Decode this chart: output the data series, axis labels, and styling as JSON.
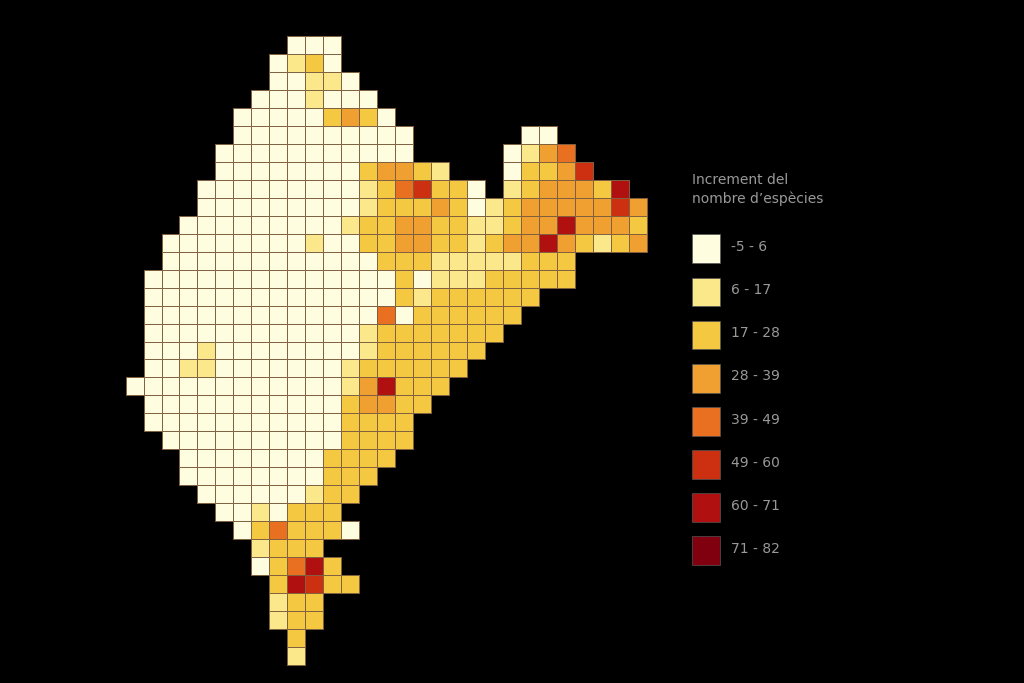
{
  "background_color": "#000000",
  "legend_title": "Increment del\nnombre d’espècies",
  "legend_labels": [
    "-5 - 6",
    "6 - 17",
    "17 - 28",
    "28 - 39",
    "39 - 49",
    "49 - 60",
    "60 - 71",
    "71 - 82"
  ],
  "legend_colors": [
    "#FEFDE0",
    "#FAE88A",
    "#F5C842",
    "#F0A030",
    "#E87020",
    "#CC3010",
    "#B01010",
    "#800010"
  ],
  "border_color": "#806040",
  "border_lw": 0.7,
  "color_map": {
    "1": "#FEFDE0",
    "2": "#FAE88A",
    "3": "#F5C842",
    "4": "#F0A030",
    "5": "#E87020",
    "6": "#CC3010",
    "7": "#B01010",
    "8": "#800010"
  },
  "grid": [
    [
      0,
      0,
      0,
      0,
      0,
      0,
      0,
      0,
      0,
      0,
      0,
      0,
      0,
      0,
      0,
      0,
      0,
      0,
      0,
      0,
      0,
      0,
      0,
      0,
      0,
      0,
      0,
      0,
      0,
      0
    ],
    [
      0,
      0,
      0,
      0,
      0,
      0,
      0,
      0,
      0,
      1,
      1,
      1,
      0,
      0,
      0,
      0,
      0,
      0,
      0,
      0,
      0,
      0,
      0,
      0,
      0,
      0,
      0,
      0,
      0,
      0
    ],
    [
      0,
      0,
      0,
      0,
      0,
      0,
      0,
      0,
      1,
      2,
      3,
      1,
      0,
      0,
      0,
      0,
      0,
      0,
      0,
      0,
      0,
      0,
      0,
      0,
      0,
      0,
      0,
      0,
      0,
      0
    ],
    [
      0,
      0,
      0,
      0,
      0,
      0,
      0,
      0,
      1,
      1,
      2,
      2,
      1,
      0,
      0,
      0,
      0,
      0,
      0,
      0,
      0,
      0,
      0,
      0,
      0,
      0,
      0,
      0,
      0,
      0
    ],
    [
      0,
      0,
      0,
      0,
      0,
      0,
      0,
      1,
      1,
      1,
      2,
      1,
      1,
      1,
      0,
      0,
      0,
      0,
      0,
      0,
      0,
      0,
      0,
      0,
      0,
      0,
      0,
      0,
      0,
      0
    ],
    [
      0,
      0,
      0,
      0,
      0,
      0,
      1,
      1,
      1,
      1,
      1,
      3,
      4,
      3,
      1,
      0,
      0,
      0,
      0,
      0,
      0,
      0,
      0,
      0,
      0,
      0,
      0,
      0,
      0,
      0
    ],
    [
      0,
      0,
      0,
      0,
      0,
      0,
      1,
      1,
      1,
      1,
      1,
      1,
      1,
      1,
      1,
      1,
      0,
      0,
      0,
      0,
      0,
      0,
      1,
      1,
      0,
      0,
      0,
      0,
      0,
      0
    ],
    [
      0,
      0,
      0,
      0,
      0,
      1,
      1,
      1,
      1,
      1,
      1,
      1,
      1,
      1,
      1,
      1,
      0,
      0,
      0,
      0,
      0,
      1,
      2,
      4,
      5,
      0,
      0,
      0,
      0,
      0
    ],
    [
      0,
      0,
      0,
      0,
      0,
      1,
      1,
      1,
      1,
      1,
      1,
      1,
      1,
      3,
      4,
      4,
      3,
      2,
      0,
      0,
      0,
      1,
      3,
      3,
      4,
      6,
      0,
      0,
      0,
      0
    ],
    [
      0,
      0,
      0,
      0,
      1,
      1,
      1,
      1,
      1,
      1,
      1,
      1,
      1,
      2,
      3,
      5,
      6,
      3,
      3,
      1,
      0,
      2,
      3,
      4,
      4,
      4,
      3,
      7,
      0,
      0
    ],
    [
      0,
      0,
      0,
      0,
      1,
      1,
      1,
      1,
      1,
      1,
      1,
      1,
      1,
      2,
      3,
      3,
      3,
      4,
      3,
      1,
      2,
      3,
      4,
      4,
      4,
      4,
      4,
      6,
      4,
      0
    ],
    [
      0,
      0,
      0,
      1,
      1,
      1,
      1,
      1,
      1,
      1,
      1,
      1,
      2,
      3,
      3,
      4,
      4,
      3,
      3,
      2,
      2,
      3,
      4,
      4,
      7,
      4,
      4,
      4,
      3,
      0
    ],
    [
      0,
      0,
      1,
      1,
      1,
      1,
      1,
      1,
      1,
      1,
      2,
      1,
      1,
      3,
      3,
      4,
      4,
      3,
      3,
      2,
      3,
      4,
      4,
      7,
      4,
      3,
      2,
      3,
      4,
      0
    ],
    [
      0,
      0,
      1,
      1,
      1,
      1,
      1,
      1,
      1,
      1,
      1,
      1,
      1,
      1,
      3,
      3,
      3,
      2,
      2,
      2,
      2,
      2,
      3,
      3,
      3,
      0,
      0,
      0,
      0,
      0
    ],
    [
      0,
      1,
      1,
      1,
      1,
      1,
      1,
      1,
      1,
      1,
      1,
      1,
      1,
      1,
      1,
      3,
      1,
      2,
      2,
      2,
      3,
      3,
      3,
      3,
      3,
      0,
      0,
      0,
      0,
      0
    ],
    [
      0,
      1,
      1,
      1,
      1,
      1,
      1,
      1,
      1,
      1,
      1,
      1,
      1,
      1,
      1,
      3,
      2,
      3,
      3,
      3,
      3,
      3,
      3,
      0,
      0,
      0,
      0,
      0,
      0,
      0
    ],
    [
      0,
      1,
      1,
      1,
      1,
      1,
      1,
      1,
      1,
      1,
      1,
      1,
      1,
      1,
      5,
      1,
      3,
      3,
      3,
      3,
      3,
      3,
      0,
      0,
      0,
      0,
      0,
      0,
      0,
      0
    ],
    [
      0,
      1,
      1,
      1,
      1,
      1,
      1,
      1,
      1,
      1,
      1,
      1,
      1,
      2,
      3,
      3,
      3,
      3,
      3,
      3,
      3,
      0,
      0,
      0,
      0,
      0,
      0,
      0,
      0,
      0
    ],
    [
      0,
      1,
      1,
      1,
      2,
      1,
      1,
      1,
      1,
      1,
      1,
      1,
      1,
      2,
      3,
      3,
      3,
      3,
      3,
      3,
      0,
      0,
      0,
      0,
      0,
      0,
      0,
      0,
      0,
      0
    ],
    [
      0,
      1,
      1,
      2,
      2,
      1,
      1,
      1,
      1,
      1,
      1,
      1,
      2,
      3,
      3,
      3,
      3,
      3,
      3,
      0,
      0,
      0,
      0,
      0,
      0,
      0,
      0,
      0,
      0,
      0
    ],
    [
      1,
      1,
      1,
      1,
      1,
      1,
      1,
      1,
      1,
      1,
      1,
      1,
      2,
      4,
      7,
      3,
      3,
      3,
      0,
      0,
      0,
      0,
      0,
      0,
      0,
      0,
      0,
      0,
      0,
      0
    ],
    [
      0,
      1,
      1,
      1,
      1,
      1,
      1,
      1,
      1,
      1,
      1,
      1,
      3,
      4,
      4,
      3,
      3,
      0,
      0,
      0,
      0,
      0,
      0,
      0,
      0,
      0,
      0,
      0,
      0,
      0
    ],
    [
      0,
      1,
      1,
      1,
      1,
      1,
      1,
      1,
      1,
      1,
      1,
      1,
      3,
      3,
      3,
      3,
      0,
      0,
      0,
      0,
      0,
      0,
      0,
      0,
      0,
      0,
      0,
      0,
      0,
      0
    ],
    [
      0,
      0,
      1,
      1,
      1,
      1,
      1,
      1,
      1,
      1,
      1,
      1,
      3,
      3,
      3,
      3,
      0,
      0,
      0,
      0,
      0,
      0,
      0,
      0,
      0,
      0,
      0,
      0,
      0,
      0
    ],
    [
      0,
      0,
      0,
      1,
      1,
      1,
      1,
      1,
      1,
      1,
      1,
      3,
      3,
      3,
      3,
      0,
      0,
      0,
      0,
      0,
      0,
      0,
      0,
      0,
      0,
      0,
      0,
      0,
      0,
      0
    ],
    [
      0,
      0,
      0,
      1,
      1,
      1,
      1,
      1,
      1,
      1,
      1,
      3,
      3,
      3,
      0,
      0,
      0,
      0,
      0,
      0,
      0,
      0,
      0,
      0,
      0,
      0,
      0,
      0,
      0,
      0
    ],
    [
      0,
      0,
      0,
      0,
      1,
      1,
      1,
      1,
      1,
      1,
      2,
      3,
      3,
      0,
      0,
      0,
      0,
      0,
      0,
      0,
      0,
      0,
      0,
      0,
      0,
      0,
      0,
      0,
      0,
      0
    ],
    [
      0,
      0,
      0,
      0,
      0,
      1,
      1,
      2,
      1,
      3,
      3,
      3,
      0,
      0,
      0,
      0,
      0,
      0,
      0,
      0,
      0,
      0,
      0,
      0,
      0,
      0,
      0,
      0,
      0,
      0
    ],
    [
      0,
      0,
      0,
      0,
      0,
      0,
      1,
      3,
      5,
      3,
      3,
      3,
      1,
      0,
      0,
      0,
      0,
      0,
      0,
      0,
      0,
      0,
      0,
      0,
      0,
      0,
      0,
      0,
      0,
      0
    ],
    [
      0,
      0,
      0,
      0,
      0,
      0,
      0,
      2,
      3,
      3,
      3,
      0,
      0,
      0,
      0,
      0,
      0,
      0,
      0,
      0,
      0,
      0,
      0,
      0,
      0,
      0,
      0,
      0,
      0,
      0
    ],
    [
      0,
      0,
      0,
      0,
      0,
      0,
      0,
      1,
      3,
      5,
      7,
      3,
      0,
      0,
      0,
      0,
      0,
      0,
      0,
      0,
      0,
      0,
      0,
      0,
      0,
      0,
      0,
      0,
      0,
      0
    ],
    [
      0,
      0,
      0,
      0,
      0,
      0,
      0,
      0,
      3,
      7,
      6,
      3,
      3,
      0,
      0,
      0,
      0,
      0,
      0,
      0,
      0,
      0,
      0,
      0,
      0,
      0,
      0,
      0,
      0,
      0
    ],
    [
      0,
      0,
      0,
      0,
      0,
      0,
      0,
      0,
      2,
      3,
      3,
      0,
      0,
      0,
      0,
      0,
      0,
      0,
      0,
      0,
      0,
      0,
      0,
      0,
      0,
      0,
      0,
      0,
      0,
      0
    ],
    [
      0,
      0,
      0,
      0,
      0,
      0,
      0,
      0,
      2,
      3,
      3,
      0,
      0,
      0,
      0,
      0,
      0,
      0,
      0,
      0,
      0,
      0,
      0,
      0,
      0,
      0,
      0,
      0,
      0,
      0
    ],
    [
      0,
      0,
      0,
      0,
      0,
      0,
      0,
      0,
      0,
      3,
      0,
      0,
      0,
      0,
      0,
      0,
      0,
      0,
      0,
      0,
      0,
      0,
      0,
      0,
      0,
      0,
      0,
      0,
      0,
      0
    ],
    [
      0,
      0,
      0,
      0,
      0,
      0,
      0,
      0,
      0,
      2,
      0,
      0,
      0,
      0,
      0,
      0,
      0,
      0,
      0,
      0,
      0,
      0,
      0,
      0,
      0,
      0,
      0,
      0,
      0,
      0
    ]
  ]
}
